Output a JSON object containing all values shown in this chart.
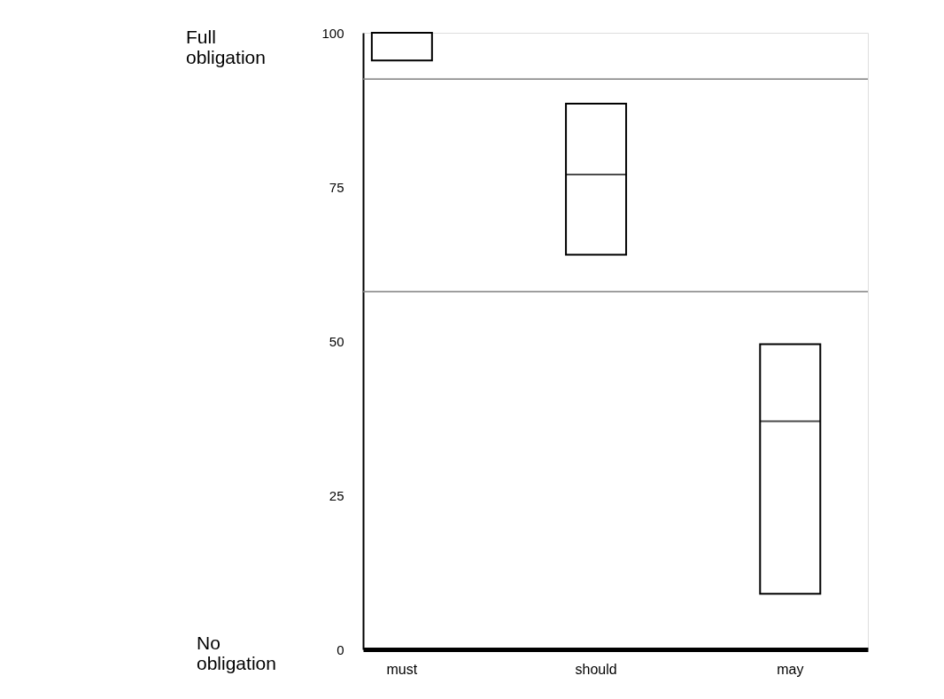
{
  "chart_data": {
    "type": "box",
    "categories": [
      "must",
      "should",
      "may"
    ],
    "boxes": [
      {
        "low": 95.5,
        "q1": 95.5,
        "median": 100,
        "q3": 100,
        "high": 100
      },
      {
        "low": 64,
        "q1": 64,
        "median": 77,
        "q3": 88.5,
        "high": 88.5
      },
      {
        "low": 9,
        "q1": 9,
        "median": 37,
        "q3": 49.5,
        "high": 49.5
      }
    ],
    "ylim": [
      0,
      100
    ],
    "yticks": [
      0,
      25,
      50,
      75,
      100
    ],
    "grid": false,
    "ref_lines": [
      {
        "axis": "y",
        "value": 92.5,
        "color": "#808080"
      },
      {
        "axis": "y",
        "value": 58,
        "color": "#808080"
      }
    ],
    "annotations": [
      "Full obligation",
      "No obligation"
    ]
  }
}
